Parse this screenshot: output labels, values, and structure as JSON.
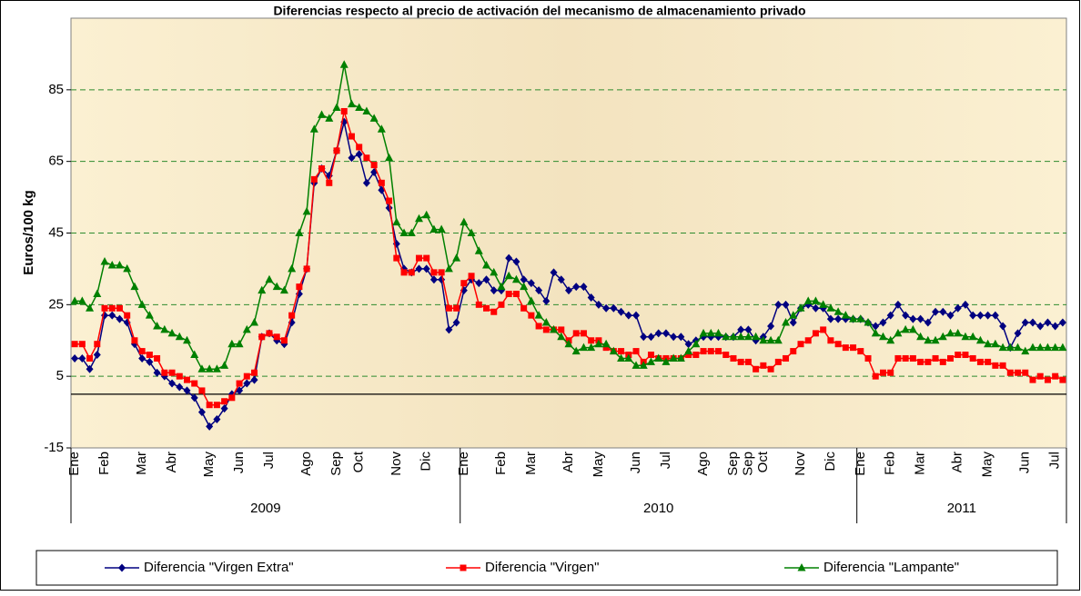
{
  "chart_data": {
    "type": "line",
    "title": "Diferencias respecto al precio de activación del mecanismo de almacenamiento privado",
    "y_label": "Euros/100 kg",
    "categories": [
      "Ene",
      null,
      null,
      null,
      "Feb",
      null,
      null,
      null,
      null,
      "Mar",
      null,
      null,
      null,
      "Abr",
      null,
      null,
      null,
      null,
      "May",
      null,
      null,
      null,
      "Jun",
      null,
      null,
      null,
      "Jul",
      null,
      null,
      null,
      null,
      "Ago",
      null,
      null,
      null,
      "Sep",
      null,
      null,
      "Oct",
      null,
      null,
      null,
      null,
      "Nov",
      null,
      null,
      null,
      "Dic",
      null,
      null,
      null,
      null,
      "Ene",
      null,
      null,
      null,
      null,
      "Feb",
      null,
      null,
      null,
      "Mar",
      null,
      null,
      null,
      null,
      "Abr",
      null,
      null,
      null,
      "May",
      null,
      null,
      null,
      null,
      "Jun",
      null,
      null,
      null,
      "Jul",
      null,
      null,
      null,
      null,
      "Ago",
      null,
      null,
      null,
      "Sep",
      null,
      "Sep",
      null,
      "Oct",
      null,
      null,
      null,
      null,
      "Nov",
      null,
      null,
      null,
      "Dic",
      null,
      null,
      null,
      "Ene",
      null,
      null,
      null,
      "Feb",
      null,
      null,
      null,
      "Mar",
      null,
      null,
      null,
      null,
      "Abr",
      null,
      null,
      null,
      "May",
      null,
      null,
      null,
      null,
      "Jun",
      null,
      null,
      null,
      "Jul",
      null
    ],
    "years": [
      "2009",
      "2010",
      "2011"
    ],
    "series": [
      {
        "name": "Diferencia \"Virgen Extra\"",
        "color": "#000080",
        "marker": "diamond",
        "values": [
          10,
          10,
          7,
          11,
          22,
          22,
          21,
          20,
          14,
          10,
          9,
          6,
          5,
          3,
          2,
          1,
          -1,
          -5,
          -9,
          -7,
          -4,
          0,
          1,
          3,
          4,
          16,
          17,
          15,
          14,
          20,
          28,
          35,
          59,
          63,
          61,
          68,
          76,
          66,
          67,
          59,
          62,
          57,
          52,
          42,
          35,
          34,
          35,
          35,
          32,
          32,
          18,
          20,
          29,
          32,
          31,
          32,
          29,
          29,
          38,
          37,
          32,
          31,
          29,
          26,
          34,
          32,
          29,
          30,
          30,
          27,
          25,
          24,
          24,
          23,
          22,
          22,
          16,
          16,
          17,
          17,
          16,
          16,
          14,
          15,
          16,
          16,
          16,
          16,
          16,
          18,
          18,
          15,
          16,
          19,
          25,
          25,
          20,
          24,
          25,
          24,
          24,
          21,
          21,
          21,
          21,
          21,
          20,
          19,
          20,
          22,
          25,
          22,
          21,
          21,
          20,
          23,
          23,
          22,
          24,
          25,
          22,
          22,
          22,
          22,
          19,
          13,
          17,
          20,
          20,
          19,
          20,
          19,
          20
        ]
      },
      {
        "name": "Diferencia \"Virgen\"",
        "color": "#ff0000",
        "marker": "square",
        "values": [
          14,
          14,
          10,
          14,
          24,
          24,
          24,
          22,
          15,
          12,
          11,
          10,
          6,
          6,
          5,
          4,
          3,
          1,
          -3,
          -3,
          -2,
          -1,
          3,
          5,
          6,
          16,
          17,
          16,
          15,
          22,
          30,
          35,
          60,
          63,
          59,
          68,
          79,
          72,
          69,
          66,
          64,
          59,
          54,
          38,
          34,
          34,
          38,
          38,
          34,
          34,
          24,
          24,
          31,
          33,
          25,
          24,
          23,
          25,
          28,
          28,
          24,
          22,
          19,
          18,
          18,
          18,
          15,
          17,
          17,
          15,
          15,
          13,
          12,
          12,
          11,
          12,
          9,
          11,
          10,
          10,
          10,
          10,
          11,
          11,
          12,
          12,
          12,
          11,
          10,
          9,
          9,
          7,
          8,
          7,
          9,
          10,
          12,
          14,
          15,
          17,
          18,
          15,
          14,
          13,
          13,
          12,
          10,
          5,
          6,
          6,
          10,
          10,
          10,
          9,
          9,
          10,
          9,
          10,
          11,
          11,
          10,
          9,
          9,
          8,
          8,
          6,
          6,
          6,
          4,
          5,
          4,
          5,
          4
        ]
      },
      {
        "name": "Diferencia \"Lampante\"",
        "color": "#008000",
        "marker": "triangle",
        "values": [
          26,
          26,
          24,
          28,
          37,
          36,
          36,
          35,
          30,
          25,
          22,
          19,
          18,
          17,
          16,
          15,
          11,
          7,
          7,
          7,
          8,
          14,
          14,
          18,
          20,
          29,
          32,
          30,
          29,
          35,
          45,
          51,
          74,
          78,
          77,
          80,
          92,
          81,
          80,
          79,
          77,
          74,
          66,
          48,
          45,
          45,
          49,
          50,
          46,
          46,
          35,
          38,
          48,
          45,
          40,
          36,
          34,
          30,
          33,
          32,
          30,
          26,
          22,
          20,
          18,
          16,
          14,
          12,
          13,
          13,
          14,
          14,
          12,
          10,
          10,
          8,
          8,
          9,
          10,
          9,
          10,
          10,
          12,
          14,
          17,
          17,
          17,
          16,
          16,
          16,
          16,
          16,
          15,
          15,
          15,
          20,
          22,
          24,
          26,
          26,
          25,
          24,
          23,
          22,
          21,
          21,
          20,
          17,
          16,
          15,
          17,
          18,
          18,
          16,
          15,
          15,
          16,
          17,
          17,
          16,
          16,
          15,
          14,
          14,
          13,
          13,
          13,
          12,
          13,
          13,
          13,
          13,
          13
        ]
      }
    ],
    "ylim": [
      -15,
      105
    ],
    "yticks": [
      -15,
      5,
      25,
      45,
      65,
      85
    ],
    "grid": true,
    "legend": "bottom"
  }
}
